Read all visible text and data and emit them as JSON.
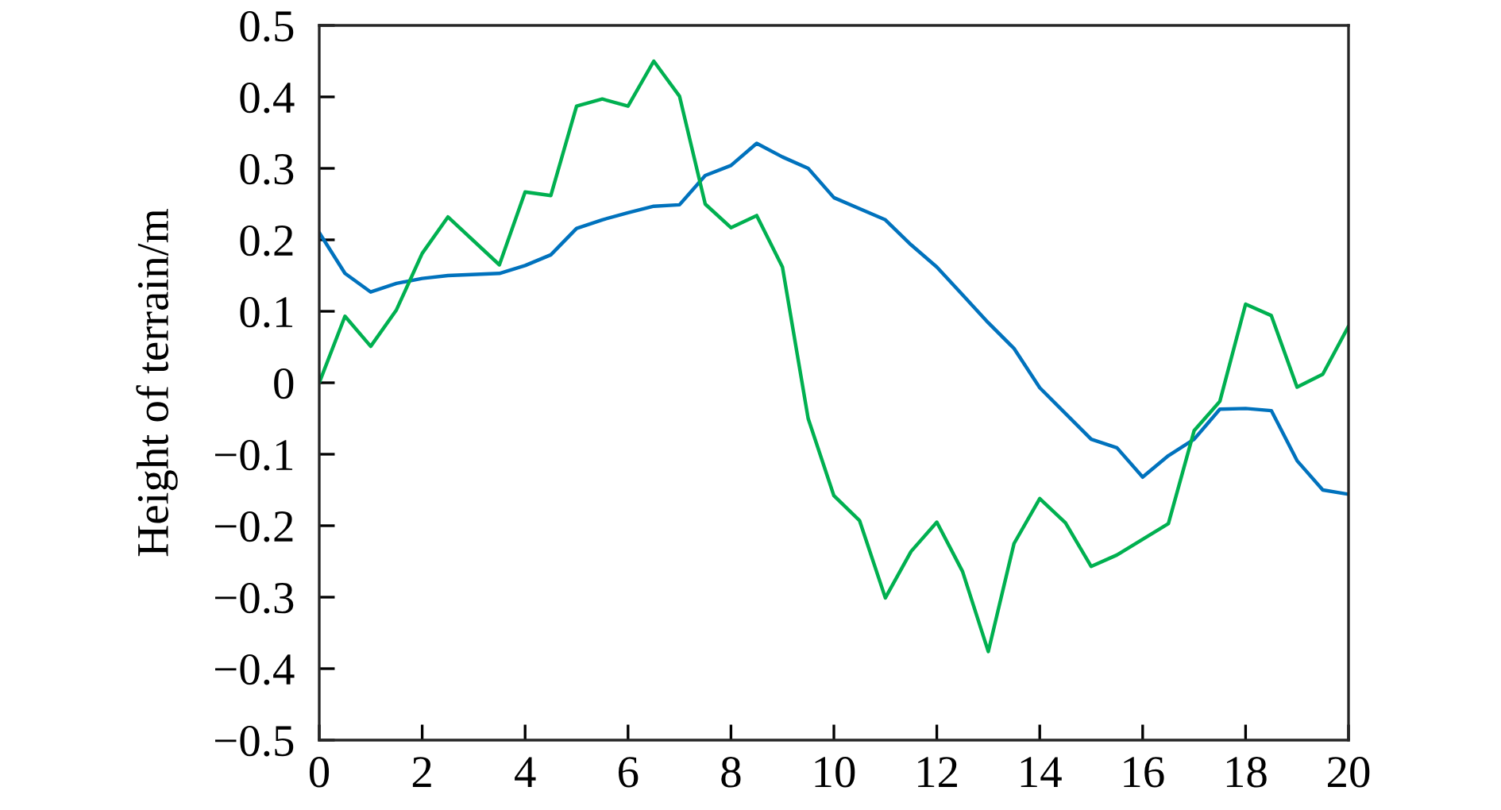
{
  "chart_data": {
    "type": "line",
    "ylabel": "Height of terrain/m",
    "xlim": [
      0,
      20
    ],
    "xticks": [
      0,
      2,
      4,
      6,
      8,
      10,
      12,
      14,
      16,
      18,
      20
    ],
    "ylim": [
      -0.5,
      0.5
    ],
    "yticks": [
      {
        "value": -0.5,
        "label": "−0.5"
      },
      {
        "value": -0.4,
        "label": "−0.4"
      },
      {
        "value": -0.3,
        "label": "−0.3"
      },
      {
        "value": -0.2,
        "label": "−0.2"
      },
      {
        "value": -0.1,
        "label": "−0.1"
      },
      0,
      0.1,
      0.2,
      0.3,
      0.4,
      0.5
    ],
    "series": [
      {
        "color": "#0072bd",
        "x": [
          0,
          0.5,
          1,
          1.5,
          2,
          2.5,
          3.5,
          4,
          4.5,
          5,
          5.5,
          6,
          6.5,
          7,
          7.5,
          8,
          8.5,
          9,
          9.5,
          10,
          11,
          11.5,
          12,
          12.5,
          13,
          13.5,
          14,
          15,
          15.5,
          16,
          16.5,
          17,
          17.5,
          18,
          18.5,
          19,
          19.5,
          20
        ],
        "values": [
          0.21,
          0.153,
          0.127,
          0.139,
          0.146,
          0.15,
          0.153,
          0.164,
          0.179,
          0.216,
          0.228,
          0.238,
          0.247,
          0.249,
          0.29,
          0.304,
          0.335,
          0.316,
          0.3,
          0.259,
          0.228,
          0.193,
          0.162,
          0.123,
          0.084,
          0.048,
          -0.007,
          -0.079,
          -0.091,
          -0.132,
          -0.102,
          -0.079,
          -0.037,
          -0.036,
          -0.039,
          -0.109,
          -0.15,
          -0.156
        ]
      },
      {
        "color": "#00b050",
        "x": [
          0,
          0.5,
          1,
          1.5,
          2,
          2.5,
          3.5,
          4,
          4.5,
          5,
          5.5,
          6,
          6.5,
          7,
          7.5,
          8,
          8.5,
          9,
          9.5,
          10,
          10.5,
          11,
          11.5,
          12,
          12.5,
          13,
          13.5,
          14,
          14.5,
          15,
          15.5,
          16.5,
          17,
          17.5,
          18,
          18.5,
          19,
          19.5,
          20
        ],
        "values": [
          0.0,
          0.093,
          0.051,
          0.102,
          0.181,
          0.232,
          0.165,
          0.267,
          0.262,
          0.387,
          0.397,
          0.387,
          0.45,
          0.401,
          0.25,
          0.217,
          0.234,
          0.162,
          -0.05,
          -0.158,
          -0.193,
          -0.301,
          -0.236,
          -0.195,
          -0.264,
          -0.376,
          -0.225,
          -0.162,
          -0.196,
          -0.257,
          -0.241,
          -0.197,
          -0.067,
          -0.026,
          0.11,
          0.094,
          -0.006,
          0.012,
          0.079
        ]
      }
    ]
  }
}
